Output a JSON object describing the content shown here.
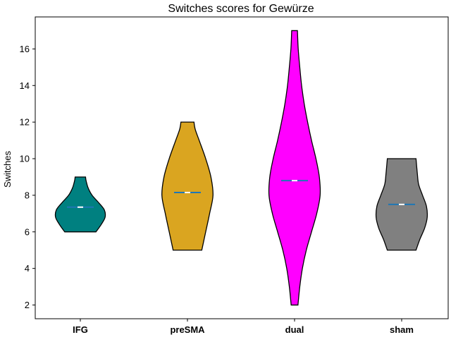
{
  "chart_data": {
    "type": "violin",
    "title": "Switches scores for Gewürze",
    "xlabel": "",
    "ylabel": "Switches",
    "ylim": [
      1.25,
      17.75
    ],
    "yticks": [
      2,
      4,
      6,
      8,
      10,
      12,
      14,
      16
    ],
    "grid": false,
    "categories": [
      "IFG",
      "preSMA",
      "dual",
      "sham"
    ],
    "series": [
      {
        "color": "#008080",
        "mean": 7.35,
        "median": 7.35,
        "min": 6,
        "max": 9,
        "profile": [
          [
            6,
            0.6
          ],
          [
            6.4,
            0.8
          ],
          [
            6.8,
            0.95
          ],
          [
            7.2,
            0.92
          ],
          [
            7.6,
            0.7
          ],
          [
            8.0,
            0.45
          ],
          [
            8.4,
            0.3
          ],
          [
            8.8,
            0.22
          ],
          [
            9,
            0.2
          ]
        ]
      },
      {
        "color": "#DAA520",
        "mean": 8.15,
        "median": 8.15,
        "min": 5,
        "max": 12,
        "profile": [
          [
            5,
            0.55
          ],
          [
            6,
            0.7
          ],
          [
            7,
            0.85
          ],
          [
            8,
            0.98
          ],
          [
            9,
            0.9
          ],
          [
            10,
            0.7
          ],
          [
            11,
            0.45
          ],
          [
            11.6,
            0.3
          ],
          [
            12,
            0.25
          ]
        ]
      },
      {
        "color": "#FF00FF",
        "mean": 8.8,
        "median": 8.8,
        "min": 2,
        "max": 17,
        "profile": [
          [
            2,
            0.13
          ],
          [
            3,
            0.2
          ],
          [
            4,
            0.3
          ],
          [
            5,
            0.45
          ],
          [
            6,
            0.65
          ],
          [
            7,
            0.85
          ],
          [
            8,
            0.98
          ],
          [
            9,
            0.95
          ],
          [
            10,
            0.82
          ],
          [
            11,
            0.65
          ],
          [
            12,
            0.5
          ],
          [
            13,
            0.37
          ],
          [
            14,
            0.27
          ],
          [
            15,
            0.2
          ],
          [
            16,
            0.14
          ],
          [
            17,
            0.11
          ]
        ]
      },
      {
        "color": "#808080",
        "mean": 7.5,
        "median": 7.5,
        "min": 5,
        "max": 10,
        "profile": [
          [
            5,
            0.55
          ],
          [
            5.6,
            0.7
          ],
          [
            6.2,
            0.88
          ],
          [
            6.8,
            0.98
          ],
          [
            7.4,
            0.95
          ],
          [
            8.0,
            0.8
          ],
          [
            8.6,
            0.65
          ],
          [
            9.2,
            0.6
          ],
          [
            10,
            0.55
          ]
        ]
      }
    ]
  }
}
